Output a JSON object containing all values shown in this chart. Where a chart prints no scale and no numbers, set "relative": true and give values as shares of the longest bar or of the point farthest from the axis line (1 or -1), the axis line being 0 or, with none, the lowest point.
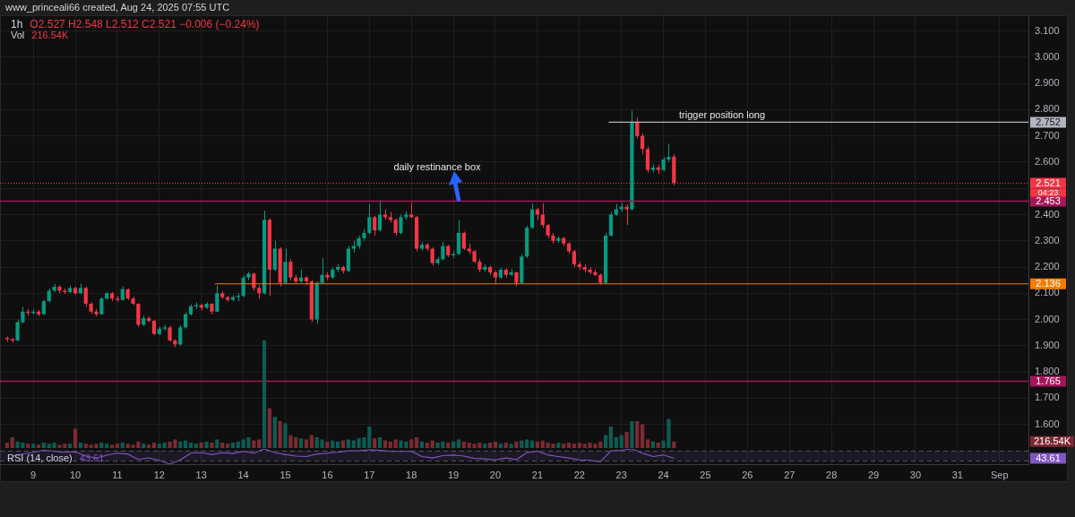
{
  "chart_data": [
    {
      "type": "candlestick",
      "title": "1h",
      "subtitle": "O2.527 H2.548 L2.512 C2.521 −0.006 (−0.24%)",
      "annotations": [
        "www_princeali66 created, Aug 24, 2025 07:55 UTC",
        "04:23",
        "daily restinance box",
        "trigger position long"
      ],
      "series": [
        {
          "x": [
            "2025-08-08T09:00",
            "2025-08-08T12:00",
            "2025-08-08T15:00",
            "2025-08-08T18:00",
            "2025-08-08T21:00",
            "2025-08-09T00:00",
            "2025-08-09T03:00",
            "2025-08-09T06:00",
            "2025-08-09T09:00",
            "2025-08-09T12:00",
            "2025-08-09T15:00",
            "2025-08-09T18:00",
            "2025-08-09T21:00",
            "2025-08-10T00:00",
            "2025-08-10T03:00",
            "2025-08-10T06:00",
            "2025-08-10T09:00",
            "2025-08-10T12:00",
            "2025-08-10T15:00",
            "2025-08-10T18:00",
            "2025-08-10T21:00",
            "2025-08-11T00:00",
            "2025-08-11T03:00",
            "2025-08-11T06:00",
            "2025-08-11T09:00",
            "2025-08-11T12:00",
            "2025-08-11T15:00",
            "2025-08-11T18:00",
            "2025-08-11T21:00",
            "2025-08-12T00:00",
            "2025-08-12T03:00",
            "2025-08-12T06:00",
            "2025-08-12T09:00",
            "2025-08-12T12:00",
            "2025-08-12T15:00",
            "2025-08-12T18:00",
            "2025-08-12T21:00",
            "2025-08-13T00:00",
            "2025-08-13T03:00",
            "2025-08-13T06:00",
            "2025-08-13T09:00",
            "2025-08-13T12:00",
            "2025-08-13T15:00",
            "2025-08-13T18:00",
            "2025-08-13T21:00",
            "2025-08-14T00:00",
            "2025-08-14T03:00",
            "2025-08-14T06:00",
            "2025-08-14T09:00",
            "2025-08-14T12:00",
            "2025-08-14T15:00",
            "2025-08-14T18:00",
            "2025-08-14T21:00",
            "2025-08-15T00:00",
            "2025-08-15T03:00",
            "2025-08-15T06:00",
            "2025-08-15T09:00",
            "2025-08-15T12:00",
            "2025-08-15T15:00",
            "2025-08-15T18:00",
            "2025-08-15T21:00",
            "2025-08-16T00:00",
            "2025-08-16T03:00",
            "2025-08-16T06:00",
            "2025-08-16T09:00",
            "2025-08-16T12:00",
            "2025-08-16T15:00",
            "2025-08-16T18:00",
            "2025-08-16T21:00",
            "2025-08-17T00:00",
            "2025-08-17T03:00",
            "2025-08-17T06:00",
            "2025-08-17T09:00",
            "2025-08-17T12:00",
            "2025-08-17T15:00",
            "2025-08-17T18:00",
            "2025-08-17T21:00",
            "2025-08-18T00:00",
            "2025-08-18T03:00",
            "2025-08-18T06:00",
            "2025-08-18T09:00",
            "2025-08-18T12:00",
            "2025-08-18T15:00",
            "2025-08-18T18:00",
            "2025-08-18T21:00",
            "2025-08-19T00:00",
            "2025-08-19T03:00",
            "2025-08-19T06:00",
            "2025-08-19T09:00",
            "2025-08-19T12:00",
            "2025-08-19T15:00",
            "2025-08-19T18:00",
            "2025-08-19T21:00",
            "2025-08-20T00:00",
            "2025-08-20T03:00",
            "2025-08-20T06:00",
            "2025-08-20T09:00",
            "2025-08-20T12:00",
            "2025-08-20T15:00",
            "2025-08-20T18:00",
            "2025-08-20T21:00",
            "2025-08-21T00:00",
            "2025-08-21T03:00",
            "2025-08-21T06:00",
            "2025-08-21T09:00",
            "2025-08-21T12:00",
            "2025-08-21T15:00",
            "2025-08-21T18:00",
            "2025-08-21T21:00",
            "2025-08-22T00:00",
            "2025-08-22T03:00",
            "2025-08-22T06:00",
            "2025-08-22T09:00",
            "2025-08-22T12:00",
            "2025-08-22T15:00",
            "2025-08-22T18:00",
            "2025-08-22T21:00",
            "2025-08-23T00:00",
            "2025-08-23T03:00",
            "2025-08-23T06:00",
            "2025-08-23T09:00",
            "2025-08-23T12:00",
            "2025-08-23T15:00",
            "2025-08-23T18:00",
            "2025-08-23T21:00",
            "2025-08-24T00:00",
            "2025-08-24T03:00",
            "2025-08-24T06:00"
          ],
          "ohlc": [
            [
              1.93,
              1.935,
              1.915,
              1.925
            ],
            [
              1.925,
              1.93,
              1.912,
              1.92
            ],
            [
              1.92,
              2.0,
              1.918,
              1.99
            ],
            [
              1.99,
              2.048,
              1.985,
              2.03
            ],
            [
              2.03,
              2.04,
              2.015,
              2.025
            ],
            [
              2.025,
              2.038,
              2.018,
              2.03
            ],
            [
              2.03,
              2.036,
              2.012,
              2.02
            ],
            [
              2.02,
              2.075,
              2.018,
              2.07
            ],
            [
              2.07,
              2.118,
              2.065,
              2.11
            ],
            [
              2.11,
              2.136,
              2.105,
              2.125
            ],
            [
              2.125,
              2.13,
              2.1,
              2.11
            ],
            [
              2.11,
              2.118,
              2.098,
              2.105
            ],
            [
              2.105,
              2.13,
              2.1,
              2.12
            ],
            [
              2.12,
              2.125,
              2.095,
              2.1
            ],
            [
              2.1,
              2.136,
              2.098,
              2.12
            ],
            [
              2.12,
              2.125,
              2.048,
              2.06
            ],
            [
              2.06,
              2.065,
              2.022,
              2.03
            ],
            [
              2.03,
              2.04,
              2.012,
              2.02
            ],
            [
              2.02,
              2.085,
              2.018,
              2.08
            ],
            [
              2.08,
              2.105,
              2.075,
              2.1
            ],
            [
              2.1,
              2.105,
              2.07,
              2.08
            ],
            [
              2.08,
              2.09,
              2.068,
              2.075
            ],
            [
              2.075,
              2.126,
              2.072,
              2.115
            ],
            [
              2.115,
              2.118,
              2.075,
              2.08
            ],
            [
              2.08,
              2.088,
              2.055,
              2.06
            ],
            [
              2.06,
              2.062,
              1.972,
              1.98
            ],
            [
              1.98,
              2.015,
              1.975,
              2.005
            ],
            [
              2.005,
              2.012,
              1.99,
              1.995
            ],
            [
              1.995,
              1.998,
              1.94,
              1.945
            ],
            [
              1.945,
              1.972,
              1.94,
              1.965
            ],
            [
              1.965,
              1.98,
              1.958,
              1.97
            ],
            [
              1.97,
              1.975,
              1.915,
              1.92
            ],
            [
              1.92,
              1.925,
              1.895,
              1.905
            ],
            [
              1.905,
              1.978,
              1.9,
              1.97
            ],
            [
              1.97,
              2.028,
              1.965,
              2.02
            ],
            [
              2.02,
              2.058,
              2.015,
              2.05
            ],
            [
              2.05,
              2.065,
              2.04,
              2.055
            ],
            [
              2.055,
              2.06,
              2.035,
              2.045
            ],
            [
              2.045,
              2.066,
              2.04,
              2.06
            ],
            [
              2.06,
              2.062,
              2.02,
              2.03
            ],
            [
              2.03,
              2.13,
              2.028,
              2.1
            ],
            [
              2.1,
              2.108,
              2.078,
              2.085
            ],
            [
              2.085,
              2.09,
              2.068,
              2.075
            ],
            [
              2.075,
              2.092,
              2.07,
              2.085
            ],
            [
              2.085,
              2.1,
              2.07,
              2.09
            ],
            [
              2.09,
              2.168,
              2.085,
              2.16
            ],
            [
              2.16,
              2.182,
              2.15,
              2.175
            ],
            [
              2.175,
              2.178,
              2.11,
              2.12
            ],
            [
              2.12,
              2.13,
              2.08,
              2.1
            ],
            [
              2.1,
              2.415,
              2.095,
              2.38
            ],
            [
              2.38,
              2.385,
              2.09,
              2.19
            ],
            [
              2.19,
              2.3,
              2.185,
              2.27
            ],
            [
              2.27,
              2.275,
              2.126,
              2.14
            ],
            [
              2.14,
              2.27,
              2.135,
              2.22
            ],
            [
              2.22,
              2.23,
              2.15,
              2.16
            ],
            [
              2.16,
              2.17,
              2.135,
              2.145
            ],
            [
              2.145,
              2.19,
              2.14,
              2.16
            ],
            [
              2.16,
              2.165,
              2.13,
              2.145
            ],
            [
              2.145,
              2.15,
              1.99,
              2.0
            ],
            [
              2.0,
              2.145,
              1.983,
              2.14
            ],
            [
              2.14,
              2.235,
              2.135,
              2.17
            ],
            [
              2.17,
              2.18,
              2.15,
              2.16
            ],
            [
              2.16,
              2.198,
              2.155,
              2.19
            ],
            [
              2.19,
              2.21,
              2.18,
              2.2
            ],
            [
              2.2,
              2.205,
              2.175,
              2.185
            ],
            [
              2.185,
              2.28,
              2.18,
              2.27
            ],
            [
              2.27,
              2.3,
              2.255,
              2.28
            ],
            [
              2.28,
              2.32,
              2.27,
              2.31
            ],
            [
              2.31,
              2.345,
              2.3,
              2.33
            ],
            [
              2.33,
              2.44,
              2.325,
              2.39
            ],
            [
              2.39,
              2.395,
              2.32,
              2.34
            ],
            [
              2.34,
              2.456,
              2.335,
              2.4
            ],
            [
              2.4,
              2.42,
              2.38,
              2.39
            ],
            [
              2.39,
              2.41,
              2.37,
              2.38
            ],
            [
              2.38,
              2.385,
              2.32,
              2.33
            ],
            [
              2.33,
              2.4,
              2.325,
              2.39
            ],
            [
              2.39,
              2.412,
              2.38,
              2.4
            ],
            [
              2.4,
              2.446,
              2.385,
              2.39
            ],
            [
              2.39,
              2.395,
              2.26,
              2.27
            ],
            [
              2.27,
              2.295,
              2.262,
              2.285
            ],
            [
              2.285,
              2.29,
              2.26,
              2.27
            ],
            [
              2.27,
              2.275,
              2.205,
              2.215
            ],
            [
              2.215,
              2.238,
              2.208,
              2.23
            ],
            [
              2.23,
              2.296,
              2.225,
              2.28
            ],
            [
              2.28,
              2.285,
              2.238,
              2.245
            ],
            [
              2.245,
              2.262,
              2.235,
              2.25
            ],
            [
              2.25,
              2.38,
              2.245,
              2.33
            ],
            [
              2.33,
              2.335,
              2.265,
              2.27
            ],
            [
              2.27,
              2.29,
              2.25,
              2.26
            ],
            [
              2.26,
              2.265,
              2.215,
              2.22
            ],
            [
              2.22,
              2.23,
              2.18,
              2.19
            ],
            [
              2.19,
              2.21,
              2.182,
              2.2
            ],
            [
              2.2,
              2.205,
              2.17,
              2.18
            ],
            [
              2.18,
              2.185,
              2.136,
              2.16
            ],
            [
              2.16,
              2.198,
              2.155,
              2.19
            ],
            [
              2.19,
              2.195,
              2.16,
              2.17
            ],
            [
              2.17,
              2.192,
              2.165,
              2.18
            ],
            [
              2.18,
              2.182,
              2.126,
              2.14
            ],
            [
              2.14,
              2.25,
              2.135,
              2.24
            ],
            [
              2.24,
              2.358,
              2.235,
              2.35
            ],
            [
              2.35,
              2.443,
              2.345,
              2.42
            ],
            [
              2.42,
              2.425,
              2.38,
              2.4
            ],
            [
              2.4,
              2.443,
              2.35,
              2.36
            ],
            [
              2.36,
              2.365,
              2.31,
              2.32
            ],
            [
              2.32,
              2.33,
              2.29,
              2.3
            ],
            [
              2.3,
              2.318,
              2.292,
              2.31
            ],
            [
              2.31,
              2.315,
              2.28,
              2.29
            ],
            [
              2.29,
              2.295,
              2.25,
              2.26
            ],
            [
              2.26,
              2.265,
              2.2,
              2.21
            ],
            [
              2.21,
              2.22,
              2.19,
              2.2
            ],
            [
              2.2,
              2.21,
              2.18,
              2.19
            ],
            [
              2.19,
              2.198,
              2.172,
              2.18
            ],
            [
              2.18,
              2.19,
              2.165,
              2.17
            ],
            [
              2.17,
              2.175,
              2.133,
              2.14
            ],
            [
              2.14,
              2.33,
              2.138,
              2.32
            ],
            [
              2.32,
              2.41,
              2.315,
              2.4
            ],
            [
              2.4,
              2.44,
              2.395,
              2.42
            ],
            [
              2.42,
              2.445,
              2.41,
              2.43
            ],
            [
              2.43,
              2.44,
              2.36,
              2.42
            ],
            [
              2.42,
              2.796,
              2.415,
              2.75
            ],
            [
              2.75,
              2.77,
              2.69,
              2.7
            ],
            [
              2.7,
              2.71,
              2.63,
              2.65
            ],
            [
              2.65,
              2.66,
              2.56,
              2.57
            ],
            [
              2.57,
              2.592,
              2.56,
              2.58
            ],
            [
              2.58,
              2.59,
              2.555,
              2.57
            ],
            [
              2.57,
              2.62,
              2.565,
              2.61
            ],
            [
              2.61,
              2.67,
              2.6,
              2.62
            ],
            [
              2.62,
              2.63,
              2.512,
              2.521
            ]
          ],
          "colors": [
            "#f23645",
            "#f23645",
            "#089981",
            "#089981",
            "#f23645",
            "#089981",
            "#f23645",
            "#089981",
            "#089981",
            "#089981",
            "#f23645",
            "#f23645",
            "#089981",
            "#f23645",
            "#089981",
            "#f23645",
            "#f23645",
            "#f23645",
            "#089981",
            "#089981",
            "#f23645",
            "#f23645",
            "#089981",
            "#f23645",
            "#f23645",
            "#f23645",
            "#089981",
            "#f23645",
            "#f23645",
            "#089981",
            "#089981",
            "#f23645",
            "#f23645",
            "#089981",
            "#089981",
            "#089981",
            "#089981",
            "#f23645",
            "#089981",
            "#f23645",
            "#089981",
            "#f23645",
            "#f23645",
            "#089981",
            "#089981",
            "#089981",
            "#089981",
            "#f23645",
            "#f23645",
            "#089981",
            "#f23645",
            "#089981",
            "#f23645",
            "#089981",
            "#f23645",
            "#f23645",
            "#089981",
            "#f23645",
            "#f23645",
            "#089981",
            "#089981",
            "#f23645",
            "#089981",
            "#089981",
            "#f23645",
            "#089981",
            "#089981",
            "#089981",
            "#089981",
            "#089981",
            "#f23645",
            "#089981",
            "#f23645",
            "#f23645",
            "#f23645",
            "#089981",
            "#089981",
            "#f23645",
            "#f23645",
            "#089981",
            "#f23645",
            "#f23645",
            "#089981",
            "#089981",
            "#f23645",
            "#089981",
            "#089981",
            "#f23645",
            "#f23645",
            "#f23645",
            "#f23645",
            "#089981",
            "#f23645",
            "#f23645",
            "#089981",
            "#f23645",
            "#089981",
            "#f23645",
            "#089981",
            "#089981",
            "#089981",
            "#f23645",
            "#f23645",
            "#f23645",
            "#f23645",
            "#089981",
            "#f23645",
            "#f23645",
            "#f23645",
            "#f23645",
            "#f23645",
            "#f23645",
            "#f23645",
            "#f23645",
            "#089981",
            "#089981",
            "#089981",
            "#089981",
            "#f23645",
            "#089981",
            "#f23645",
            "#f23645",
            "#f23645",
            "#089981",
            "#f23645",
            "#089981",
            "#089981",
            "#f23645"
          ]
        },
        {
          "type": "line",
          "x": [
            "2025-08-22T17:00",
            "2025-09-01T16:30"
          ],
          "values": [
            2.752,
            2.752
          ],
          "color": "#b2b5be",
          "value_labels": [
            null,
            "2.752"
          ]
        },
        {
          "type": "line",
          "x": [
            "2025-08-13T08:00",
            "2025-09-01T16:30"
          ],
          "values": [
            2.136,
            2.136
          ],
          "color": "#f57c00",
          "value_labels": [
            null,
            "2.136"
          ]
        }
      ],
      "ref_lines": [
        {
          "axis": "y",
          "value": 2.521,
          "label": "2.521",
          "color": "#f23645",
          "line_style": "dotted"
        },
        {
          "axis": "y",
          "value": 2.453,
          "label": "2.453",
          "color": "#a3175a"
        },
        {
          "axis": "y",
          "value": 1.765,
          "label": "1.765",
          "color": "#a3175a"
        }
      ],
      "xlim": [
        "2025-08-08T05:00",
        "2025-09-01T16:30"
      ],
      "xticks": [
        {
          "value": "2025-08-09",
          "label": null
        },
        {
          "value": "2025-08-10",
          "label": null
        },
        {
          "value": "2025-08-11",
          "label": null
        },
        {
          "value": "2025-08-12",
          "label": null
        },
        {
          "value": "2025-08-13",
          "label": null
        },
        {
          "value": "2025-08-14",
          "label": null
        },
        {
          "value": "2025-08-15",
          "label": null
        },
        {
          "value": "2025-08-16",
          "label": null
        },
        {
          "value": "2025-08-17",
          "label": null
        },
        {
          "value": "2025-08-18",
          "label": null
        },
        {
          "value": "2025-08-19",
          "label": null
        },
        {
          "value": "2025-08-20",
          "label": null
        },
        {
          "value": "2025-08-21",
          "label": null
        },
        {
          "value": "2025-08-22",
          "label": null
        },
        {
          "value": "2025-08-23",
          "label": null
        },
        {
          "value": "2025-08-24",
          "label": null
        },
        {
          "value": "2025-08-25",
          "label": null
        },
        {
          "value": "2025-08-26",
          "label": null
        },
        {
          "value": "2025-08-27",
          "label": null
        },
        {
          "value": "2025-08-28",
          "label": null
        },
        {
          "value": "2025-08-29",
          "label": null
        },
        {
          "value": "2025-08-30",
          "label": null
        },
        {
          "value": "2025-08-31",
          "label": null
        },
        {
          "value": "2025-09-01",
          "label": null
        }
      ],
      "ylim": [
        1.51,
        3.16
      ],
      "yticks": [
        {
          "value": 1.6,
          "label": "1.600"
        },
        {
          "value": 1.7,
          "label": "1.700"
        },
        {
          "value": 1.8,
          "label": "1.800"
        },
        {
          "value": 1.9,
          "label": "1.900"
        },
        {
          "value": 2.0,
          "label": "2.000"
        },
        {
          "value": 2.1,
          "label": "2.100"
        },
        {
          "value": 2.2,
          "label": "2.200"
        },
        {
          "value": 2.3,
          "label": "2.300"
        },
        {
          "value": 2.4,
          "label": "2.400"
        },
        {
          "value": 2.5,
          "label": null
        },
        {
          "value": 2.6,
          "label": "2.600"
        },
        {
          "value": 2.7,
          "label": "2.700"
        },
        {
          "value": 2.8,
          "label": "2.800"
        },
        {
          "value": 2.9,
          "label": "2.900"
        },
        {
          "value": 3.0,
          "label": "3.000"
        },
        {
          "value": 3.1,
          "label": "3.100"
        }
      ],
      "grid": true,
      "tick_labels": "y"
    },
    {
      "type": "bar",
      "title": "Vol",
      "subtitle": "216.54K",
      "relative": true,
      "annotations": [
        "216.54K"
      ],
      "x": [
        "2025-08-08T09:00",
        "2025-08-08T12:00",
        "2025-08-08T15:00",
        "2025-08-08T18:00",
        "2025-08-08T21:00",
        "2025-08-09T00:00",
        "2025-08-09T03:00",
        "2025-08-09T06:00",
        "2025-08-09T09:00",
        "2025-08-09T12:00",
        "2025-08-09T15:00",
        "2025-08-09T18:00",
        "2025-08-09T21:00",
        "2025-08-10T00:00",
        "2025-08-10T03:00",
        "2025-08-10T06:00",
        "2025-08-10T09:00",
        "2025-08-10T12:00",
        "2025-08-10T15:00",
        "2025-08-10T18:00",
        "2025-08-10T21:00",
        "2025-08-11T00:00",
        "2025-08-11T03:00",
        "2025-08-11T06:00",
        "2025-08-11T09:00",
        "2025-08-11T12:00",
        "2025-08-11T15:00",
        "2025-08-11T18:00",
        "2025-08-11T21:00",
        "2025-08-12T00:00",
        "2025-08-12T03:00",
        "2025-08-12T06:00",
        "2025-08-12T09:00",
        "2025-08-12T12:00",
        "2025-08-12T15:00",
        "2025-08-12T18:00",
        "2025-08-12T21:00",
        "2025-08-13T00:00",
        "2025-08-13T03:00",
        "2025-08-13T06:00",
        "2025-08-13T09:00",
        "2025-08-13T12:00",
        "2025-08-13T15:00",
        "2025-08-13T18:00",
        "2025-08-13T21:00",
        "2025-08-14T00:00",
        "2025-08-14T03:00",
        "2025-08-14T06:00",
        "2025-08-14T09:00",
        "2025-08-14T12:00",
        "2025-08-14T15:00",
        "2025-08-14T18:00",
        "2025-08-14T21:00",
        "2025-08-15T00:00",
        "2025-08-15T03:00",
        "2025-08-15T06:00",
        "2025-08-15T09:00",
        "2025-08-15T12:00",
        "2025-08-15T15:00",
        "2025-08-15T18:00",
        "2025-08-15T21:00",
        "2025-08-16T00:00",
        "2025-08-16T03:00",
        "2025-08-16T06:00",
        "2025-08-16T09:00",
        "2025-08-16T12:00",
        "2025-08-16T15:00",
        "2025-08-16T18:00",
        "2025-08-16T21:00",
        "2025-08-17T00:00",
        "2025-08-17T03:00",
        "2025-08-17T06:00",
        "2025-08-17T09:00",
        "2025-08-17T12:00",
        "2025-08-17T15:00",
        "2025-08-17T18:00",
        "2025-08-17T21:00",
        "2025-08-18T00:00",
        "2025-08-18T03:00",
        "2025-08-18T06:00",
        "2025-08-18T09:00",
        "2025-08-18T12:00",
        "2025-08-18T15:00",
        "2025-08-18T18:00",
        "2025-08-18T21:00",
        "2025-08-19T00:00",
        "2025-08-19T03:00",
        "2025-08-19T06:00",
        "2025-08-19T09:00",
        "2025-08-19T12:00",
        "2025-08-19T15:00",
        "2025-08-19T18:00",
        "2025-08-19T21:00",
        "2025-08-20T00:00",
        "2025-08-20T03:00",
        "2025-08-20T06:00",
        "2025-08-20T09:00",
        "2025-08-20T12:00",
        "2025-08-20T15:00",
        "2025-08-20T18:00",
        "2025-08-20T21:00",
        "2025-08-21T00:00",
        "2025-08-21T03:00",
        "2025-08-21T06:00",
        "2025-08-21T09:00",
        "2025-08-21T12:00",
        "2025-08-21T15:00",
        "2025-08-21T18:00",
        "2025-08-21T21:00",
        "2025-08-22T00:00",
        "2025-08-22T03:00",
        "2025-08-22T06:00",
        "2025-08-22T09:00",
        "2025-08-22T12:00",
        "2025-08-22T15:00",
        "2025-08-22T18:00",
        "2025-08-22T21:00",
        "2025-08-23T00:00",
        "2025-08-23T03:00",
        "2025-08-23T06:00",
        "2025-08-23T09:00",
        "2025-08-23T12:00",
        "2025-08-23T15:00",
        "2025-08-23T18:00",
        "2025-08-23T21:00",
        "2025-08-24T00:00",
        "2025-08-24T03:00",
        "2025-08-24T06:00"
      ],
      "values": [
        0.05,
        0.1,
        0.06,
        0.05,
        0.04,
        0.04,
        0.03,
        0.05,
        0.04,
        0.05,
        0.03,
        0.04,
        0.04,
        0.18,
        0.05,
        0.04,
        0.03,
        0.04,
        0.05,
        0.04,
        0.03,
        0.04,
        0.05,
        0.04,
        0.03,
        0.06,
        0.04,
        0.03,
        0.05,
        0.04,
        0.05,
        0.06,
        0.08,
        0.06,
        0.07,
        0.05,
        0.04,
        0.05,
        0.06,
        0.05,
        0.08,
        0.05,
        0.04,
        0.05,
        0.06,
        0.08,
        0.1,
        0.07,
        0.08,
        1,
        0.37,
        0.29,
        0.25,
        0.23,
        0.12,
        0.1,
        0.09,
        0.08,
        0.12,
        0.1,
        0.08,
        0.06,
        0.07,
        0.06,
        0.07,
        0.08,
        0.07,
        0.09,
        0.1,
        0.2,
        0.09,
        0.1,
        0.07,
        0.06,
        0.08,
        0.07,
        0.06,
        0.08,
        0.1,
        0.06,
        0.05,
        0.07,
        0.05,
        0.06,
        0.05,
        0.06,
        0.08,
        0.06,
        0.05,
        0.04,
        0.05,
        0.04,
        0.05,
        0.06,
        0.04,
        0.05,
        0.04,
        0.06,
        0.07,
        0.08,
        0.07,
        0.06,
        0.07,
        0.05,
        0.04,
        0.05,
        0.04,
        0.05,
        0.04,
        0.05,
        0.04,
        0.05,
        0.04,
        0.06,
        0.12,
        0.2,
        0.1,
        0.12,
        0.15,
        0.25,
        0.25,
        0.22,
        0.08,
        0.06,
        0.05,
        0.07,
        0.27,
        0.06
      ],
      "colors": [
        "#7d2a31",
        "#7d2a31",
        "#0d5c52",
        "#0d5c52",
        "#7d2a31",
        "#0d5c52",
        "#7d2a31",
        "#0d5c52",
        "#0d5c52",
        "#0d5c52",
        "#7d2a31",
        "#7d2a31",
        "#0d5c52",
        "#7d2a31",
        "#0d5c52",
        "#7d2a31",
        "#7d2a31",
        "#7d2a31",
        "#0d5c52",
        "#0d5c52",
        "#7d2a31",
        "#7d2a31",
        "#0d5c52",
        "#7d2a31",
        "#7d2a31",
        "#7d2a31",
        "#0d5c52",
        "#7d2a31",
        "#7d2a31",
        "#0d5c52",
        "#0d5c52",
        "#7d2a31",
        "#7d2a31",
        "#0d5c52",
        "#0d5c52",
        "#0d5c52",
        "#0d5c52",
        "#7d2a31",
        "#0d5c52",
        "#7d2a31",
        "#0d5c52",
        "#7d2a31",
        "#7d2a31",
        "#0d5c52",
        "#0d5c52",
        "#0d5c52",
        "#0d5c52",
        "#7d2a31",
        "#7d2a31",
        "#0d5c52",
        "#7d2a31",
        "#0d5c52",
        "#7d2a31",
        "#0d5c52",
        "#7d2a31",
        "#7d2a31",
        "#0d5c52",
        "#7d2a31",
        "#7d2a31",
        "#0d5c52",
        "#0d5c52",
        "#7d2a31",
        "#0d5c52",
        "#0d5c52",
        "#7d2a31",
        "#0d5c52",
        "#0d5c52",
        "#0d5c52",
        "#0d5c52",
        "#0d5c52",
        "#7d2a31",
        "#0d5c52",
        "#7d2a31",
        "#7d2a31",
        "#7d2a31",
        "#0d5c52",
        "#0d5c52",
        "#7d2a31",
        "#7d2a31",
        "#0d5c52",
        "#7d2a31",
        "#7d2a31",
        "#0d5c52",
        "#0d5c52",
        "#7d2a31",
        "#0d5c52",
        "#0d5c52",
        "#7d2a31",
        "#7d2a31",
        "#7d2a31",
        "#7d2a31",
        "#0d5c52",
        "#7d2a31",
        "#7d2a31",
        "#0d5c52",
        "#7d2a31",
        "#0d5c52",
        "#7d2a31",
        "#0d5c52",
        "#0d5c52",
        "#0d5c52",
        "#7d2a31",
        "#7d2a31",
        "#7d2a31",
        "#7d2a31",
        "#0d5c52",
        "#7d2a31",
        "#7d2a31",
        "#7d2a31",
        "#7d2a31",
        "#7d2a31",
        "#7d2a31",
        "#7d2a31",
        "#7d2a31",
        "#0d5c52",
        "#0d5c52",
        "#0d5c52",
        "#0d5c52",
        "#7d2a31",
        "#0d5c52",
        "#7d2a31",
        "#7d2a31",
        "#7d2a31",
        "#0d5c52",
        "#7d2a31",
        "#0d5c52",
        "#0d5c52",
        "#7d2a31"
      ],
      "xlim": [
        "2025-08-08T05:00",
        "2025-09-01T16:30"
      ]
    },
    {
      "type": "line",
      "title": "RSI (14, close)",
      "subtitle": "43.61",
      "relative": true,
      "color": "#7e57c2",
      "annotations": [
        "43.61"
      ],
      "x": [
        "2025-08-08T12:00",
        "2025-08-08T18:00",
        "2025-08-09T00:00",
        "2025-08-09T06:00",
        "2025-08-09T12:00",
        "2025-08-09T18:00",
        "2025-08-10T00:00",
        "2025-08-10T06:00",
        "2025-08-10T12:00",
        "2025-08-10T18:00",
        "2025-08-11T00:00",
        "2025-08-11T06:00",
        "2025-08-11T12:00",
        "2025-08-11T18:00",
        "2025-08-12T00:00",
        "2025-08-12T06:00",
        "2025-08-12T12:00",
        "2025-08-12T18:00",
        "2025-08-13T00:00",
        "2025-08-13T06:00",
        "2025-08-13T12:00",
        "2025-08-13T18:00",
        "2025-08-14T00:00",
        "2025-08-14T06:00",
        "2025-08-14T12:00",
        "2025-08-14T18:00",
        "2025-08-15T00:00",
        "2025-08-15T06:00",
        "2025-08-15T12:00",
        "2025-08-15T18:00",
        "2025-08-16T00:00",
        "2025-08-16T06:00",
        "2025-08-16T12:00",
        "2025-08-16T18:00",
        "2025-08-17T00:00",
        "2025-08-17T06:00",
        "2025-08-17T12:00",
        "2025-08-17T18:00",
        "2025-08-18T00:00",
        "2025-08-18T06:00",
        "2025-08-18T12:00",
        "2025-08-18T18:00",
        "2025-08-19T00:00",
        "2025-08-19T06:00",
        "2025-08-19T12:00",
        "2025-08-19T18:00",
        "2025-08-20T00:00",
        "2025-08-20T06:00",
        "2025-08-20T12:00",
        "2025-08-20T18:00",
        "2025-08-21T00:00",
        "2025-08-21T06:00",
        "2025-08-21T12:00",
        "2025-08-21T18:00",
        "2025-08-22T00:00",
        "2025-08-22T06:00",
        "2025-08-22T12:00",
        "2025-08-22T18:00",
        "2025-08-23T00:00",
        "2025-08-23T06:00",
        "2025-08-23T12:00",
        "2025-08-23T18:00",
        "2025-08-24T00:00",
        "2025-08-24T06:00"
      ],
      "values": [
        0.53,
        0.66,
        0.78,
        0.91,
        0.84,
        0.78,
        0.81,
        0.53,
        0.38,
        0.59,
        0.72,
        0.66,
        0.31,
        0.41,
        0.25,
        0,
        0.28,
        0.72,
        0.75,
        0.62,
        0.75,
        0.7,
        0.85,
        0.72,
        1,
        0.75,
        0.62,
        0.53,
        0.5,
        0.66,
        0.72,
        0.78,
        0.88,
        0.88,
        0.94,
        0.91,
        0.85,
        0.84,
        0.84,
        0.5,
        0.4,
        0.56,
        0.6,
        0.53,
        0.38,
        0.34,
        0.28,
        0.4,
        0.3,
        0.75,
        0.85,
        0.6,
        0.5,
        0.4,
        0.28,
        0.25,
        0.15,
        0.88,
        0.91,
        1,
        0.72,
        0.5,
        0.6,
        0.38
      ],
      "ref_lines": [
        {
          "axis": "y",
          "value": 0.9,
          "color": "#50505a",
          "line_style": "dashed"
        },
        {
          "axis": "y",
          "value": 0.22,
          "color": "#50505a",
          "line_style": "dashed"
        }
      ],
      "bands": [
        {
          "axis": "y",
          "from": 0.22,
          "to": 0.9,
          "color": "#7e57c2"
        }
      ],
      "xlim": [
        "2025-08-08T05:00",
        "2025-09-01T16:30"
      ],
      "xticks": [
        {
          "value": "2025-08-09",
          "label": "9"
        },
        {
          "value": "2025-08-10",
          "label": "10"
        },
        {
          "value": "2025-08-11",
          "label": "11"
        },
        {
          "value": "2025-08-12",
          "label": "12"
        },
        {
          "value": "2025-08-13",
          "label": "13"
        },
        {
          "value": "2025-08-14",
          "label": "14"
        },
        {
          "value": "2025-08-15",
          "label": "15"
        },
        {
          "value": "2025-08-16",
          "label": "16"
        },
        {
          "value": "2025-08-17",
          "label": "17"
        },
        {
          "value": "2025-08-18",
          "label": "18"
        },
        {
          "value": "2025-08-19",
          "label": "19"
        },
        {
          "value": "2025-08-20",
          "label": "20"
        },
        {
          "value": "2025-08-21",
          "label": "21"
        },
        {
          "value": "2025-08-22",
          "label": "22"
        },
        {
          "value": "2025-08-23",
          "label": "23"
        },
        {
          "value": "2025-08-24",
          "label": "24"
        },
        {
          "value": "2025-08-25",
          "label": "25"
        },
        {
          "value": "2025-08-26",
          "label": "26"
        },
        {
          "value": "2025-08-27",
          "label": "27"
        },
        {
          "value": "2025-08-28",
          "label": "28"
        },
        {
          "value": "2025-08-29",
          "label": "29"
        },
        {
          "value": "2025-08-30",
          "label": "30"
        },
        {
          "value": "2025-08-31",
          "label": "31"
        },
        {
          "value": "2025-09-01",
          "label": "Sep"
        }
      ],
      "tick_labels": "x",
      "grid": "x"
    }
  ]
}
